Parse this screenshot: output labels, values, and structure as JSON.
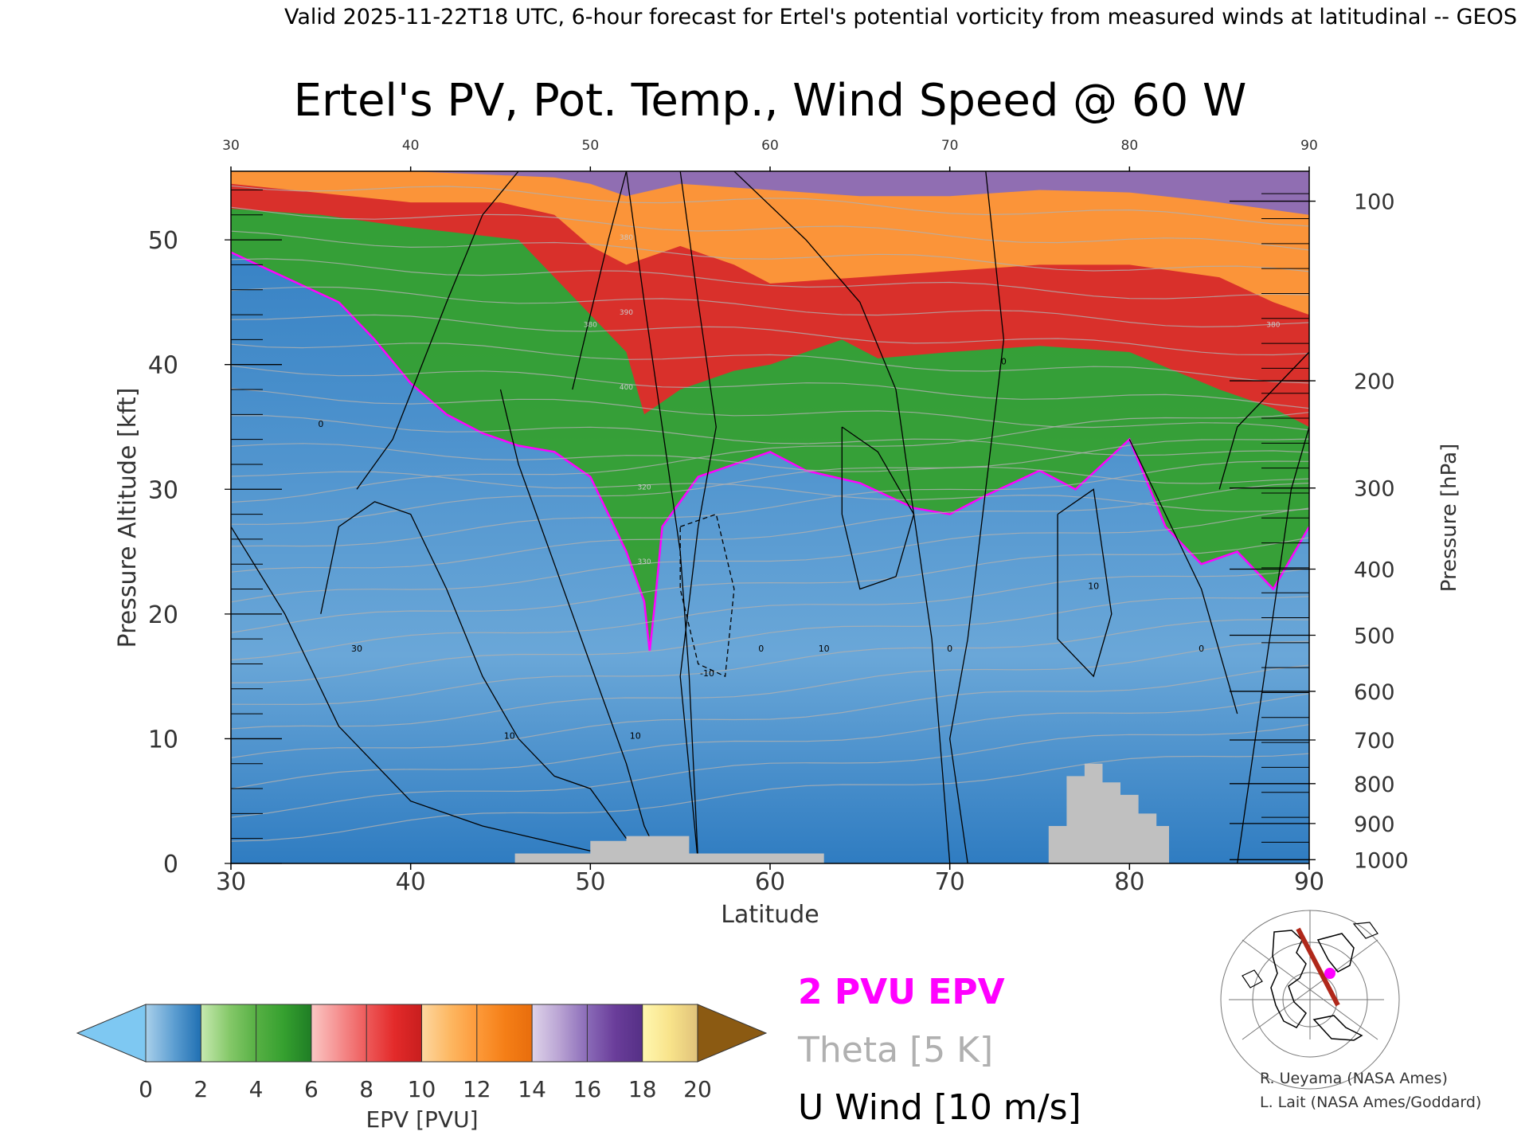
{
  "header": {
    "valid_line": "Valid 2025-11-22T18 UTC, 6-hour forecast for Ertel's potential vorticity from measured winds at latitudinal -- GEOS"
  },
  "chart_data": {
    "type": "heatmap",
    "title": "Ertel's PV, Pot. Temp., Wind Speed @ 60 W",
    "xlabel": "Latitude",
    "ylabel_left": "Pressure Altitude [kft]",
    "ylabel_right": "Pressure [hPa]",
    "xlim": [
      30,
      90
    ],
    "ylim": [
      0,
      55.5
    ],
    "x_ticks_bottom": [
      "30",
      "40",
      "50",
      "60",
      "70",
      "80",
      "90"
    ],
    "x_ticks_top": [
      "30",
      "40",
      "50",
      "60",
      "70",
      "80",
      "90"
    ],
    "y_ticks_left": [
      "0",
      "10",
      "20",
      "30",
      "40",
      "50"
    ],
    "y_ticks_right": [
      {
        "label": "100",
        "kft": 53.1
      },
      {
        "label": "200",
        "kft": 38.7
      },
      {
        "label": "300",
        "kft": 30.1
      },
      {
        "label": "400",
        "kft": 23.6
      },
      {
        "label": "500",
        "kft": 18.3
      },
      {
        "label": "600",
        "kft": 13.8
      },
      {
        "label": "700",
        "kft": 9.9
      },
      {
        "label": "800",
        "kft": 6.4
      },
      {
        "label": "900",
        "kft": 3.2
      },
      {
        "label": "1000",
        "kft": 0.3
      }
    ],
    "epv_colorbar": {
      "label": "EPV [PVU]",
      "ticks": [
        "0",
        "2",
        "4",
        "6",
        "8",
        "10",
        "12",
        "14",
        "16",
        "18",
        "20"
      ],
      "under_color": "#7ec8f2",
      "over_color": "#8b5a12",
      "bands": [
        {
          "from": 0,
          "to": 1,
          "c1": "#a9d0ea",
          "c2": "#5e9fd2"
        },
        {
          "from": 1,
          "to": 2,
          "c1": "#5e9fd2",
          "c2": "#1f6fb2"
        },
        {
          "from": 2,
          "to": 3,
          "c1": "#c7e9b0",
          "c2": "#86c96a"
        },
        {
          "from": 3,
          "to": 4,
          "c1": "#86c96a",
          "c2": "#57b044"
        },
        {
          "from": 4,
          "to": 5,
          "c1": "#57b044",
          "c2": "#35a02f"
        },
        {
          "from": 5,
          "to": 6,
          "c1": "#35a02f",
          "c2": "#1f7d25"
        },
        {
          "from": 6,
          "to": 7,
          "c1": "#fbc7c4",
          "c2": "#f59090"
        },
        {
          "from": 7,
          "to": 8,
          "c1": "#f59090",
          "c2": "#ee5a5a"
        },
        {
          "from": 8,
          "to": 9,
          "c1": "#ee5a5a",
          "c2": "#e32a2a"
        },
        {
          "from": 9,
          "to": 10,
          "c1": "#e32a2a",
          "c2": "#c81e1e"
        },
        {
          "from": 10,
          "to": 11,
          "c1": "#fdd7a0",
          "c2": "#fdb863"
        },
        {
          "from": 11,
          "to": 12,
          "c1": "#fdb863",
          "c2": "#fd9a3a"
        },
        {
          "from": 12,
          "to": 13,
          "c1": "#fd9a3a",
          "c2": "#f57f17"
        },
        {
          "from": 13,
          "to": 14,
          "c1": "#f57f17",
          "c2": "#e86d0c"
        },
        {
          "from": 14,
          "to": 15,
          "c1": "#ded3ea",
          "c2": "#b9a3d3"
        },
        {
          "from": 15,
          "to": 16,
          "c1": "#b9a3d3",
          "c2": "#8a6bb8"
        },
        {
          "from": 16,
          "to": 17,
          "c1": "#8a6bb8",
          "c2": "#6a3d9a"
        },
        {
          "from": 17,
          "to": 18,
          "c1": "#6a3d9a",
          "c2": "#553086"
        },
        {
          "from": 18,
          "to": 19,
          "c1": "#fff7b0",
          "c2": "#f8e38a"
        },
        {
          "from": 19,
          "to": 20,
          "c1": "#f8e38a",
          "c2": "#e0c27a"
        }
      ]
    },
    "pv_field_layers": [
      {
        "pvu_class": "14-18",
        "color": "#8a6bb8",
        "boundary_kft": [
          [
            30,
            55.5
          ],
          [
            40,
            55.5
          ],
          [
            48,
            55
          ],
          [
            50,
            54.5
          ],
          [
            52,
            53.5
          ],
          [
            55,
            54.5
          ],
          [
            60,
            54
          ],
          [
            65,
            53.5
          ],
          [
            70,
            53.5
          ],
          [
            75,
            54
          ],
          [
            80,
            53.8
          ],
          [
            85,
            53
          ],
          [
            90,
            52
          ]
        ]
      },
      {
        "pvu_class": "10-14",
        "color": "#fd9a3a",
        "boundary_kft": [
          [
            30,
            54.5
          ],
          [
            40,
            53
          ],
          [
            45,
            53
          ],
          [
            48,
            52
          ],
          [
            50,
            49.5
          ],
          [
            52,
            48
          ],
          [
            55,
            49.5
          ],
          [
            58,
            48
          ],
          [
            60,
            46.5
          ],
          [
            65,
            47
          ],
          [
            70,
            47.5
          ],
          [
            75,
            48
          ],
          [
            80,
            48
          ],
          [
            85,
            47
          ],
          [
            88,
            45
          ],
          [
            90,
            44
          ]
        ]
      },
      {
        "pvu_class": "6-10",
        "color": "#e32a2a",
        "boundary_kft": [
          [
            30,
            52.5
          ],
          [
            35,
            52
          ],
          [
            40,
            51
          ],
          [
            43,
            50.5
          ],
          [
            46,
            50
          ],
          [
            48,
            47
          ],
          [
            50,
            44
          ],
          [
            52,
            41
          ],
          [
            53,
            36
          ],
          [
            55,
            38
          ],
          [
            58,
            39.5
          ],
          [
            60,
            40
          ],
          [
            62,
            41
          ],
          [
            64,
            42
          ],
          [
            66,
            40.5
          ],
          [
            70,
            41
          ],
          [
            75,
            41.5
          ],
          [
            80,
            41
          ],
          [
            85,
            38
          ],
          [
            88,
            36.5
          ],
          [
            90,
            35
          ]
        ]
      },
      {
        "pvu_class": "2-6",
        "color": "#35a02f",
        "boundary_kft": [
          [
            30,
            49
          ],
          [
            33,
            47
          ],
          [
            36,
            45
          ],
          [
            38,
            42
          ],
          [
            40,
            38.5
          ],
          [
            42,
            36
          ],
          [
            44,
            34.5
          ],
          [
            46,
            33.5
          ],
          [
            48,
            33
          ],
          [
            50,
            31
          ],
          [
            51,
            28
          ],
          [
            52,
            25
          ],
          [
            53,
            21
          ],
          [
            53.3,
            17
          ],
          [
            53.6,
            21
          ],
          [
            54,
            27
          ],
          [
            56,
            31
          ],
          [
            58,
            32
          ],
          [
            60,
            33
          ],
          [
            62,
            31.5
          ],
          [
            65,
            30.5
          ],
          [
            68,
            28.5
          ],
          [
            70,
            28
          ],
          [
            72,
            29.5
          ],
          [
            75,
            31.5
          ],
          [
            77,
            30
          ],
          [
            80,
            34
          ],
          [
            82,
            27
          ],
          [
            84,
            24
          ],
          [
            86,
            25
          ],
          [
            88,
            22
          ],
          [
            90,
            27
          ]
        ]
      }
    ],
    "terrain_mask_kft": {
      "color": "#c0c0c0",
      "profile": [
        [
          30,
          0
        ],
        [
          45.8,
          0
        ],
        [
          45.8,
          0.8
        ],
        [
          50,
          0.8
        ],
        [
          50,
          1.8
        ],
        [
          52,
          1.8
        ],
        [
          52,
          2.2
        ],
        [
          55.5,
          2.2
        ],
        [
          55.5,
          0.8
        ],
        [
          63,
          0.8
        ],
        [
          63,
          0
        ],
        [
          75.5,
          0
        ],
        [
          75.5,
          3
        ],
        [
          76.5,
          3
        ],
        [
          76.5,
          7
        ],
        [
          77.5,
          7
        ],
        [
          77.5,
          8
        ],
        [
          78.5,
          8
        ],
        [
          78.5,
          6.5
        ],
        [
          79.5,
          6.5
        ],
        [
          79.5,
          5.5
        ],
        [
          80.5,
          5.5
        ],
        [
          80.5,
          4
        ],
        [
          81.5,
          4
        ],
        [
          81.5,
          3
        ],
        [
          82.2,
          3
        ],
        [
          82.2,
          0
        ],
        [
          90,
          0
        ]
      ]
    },
    "u_wind_contour_labels": [
      "0",
      "10",
      "30",
      "-10",
      "10",
      "0",
      "10",
      "0",
      "0",
      "10",
      "0"
    ],
    "theta_contour_labels": [
      "380",
      "390",
      "400",
      "380",
      "330",
      "320",
      "380"
    ],
    "legend": [
      {
        "label": "2 PVU EPV",
        "color": "#ff00ff"
      },
      {
        "label": "Theta [5 K]",
        "color": "#b0b0b0"
      },
      {
        "label": "U Wind [10 m/s]",
        "color": "#000000"
      }
    ],
    "inset_map": {
      "description_icon": "polar-stereographic-map-icon",
      "track_color": "#b0281a",
      "marker_color": "#ff00ff"
    },
    "grid": false
  },
  "credits": {
    "line1": "R. Ueyama (NASA Ames)",
    "line2": "L. Lait (NASA Ames/Goddard)"
  }
}
